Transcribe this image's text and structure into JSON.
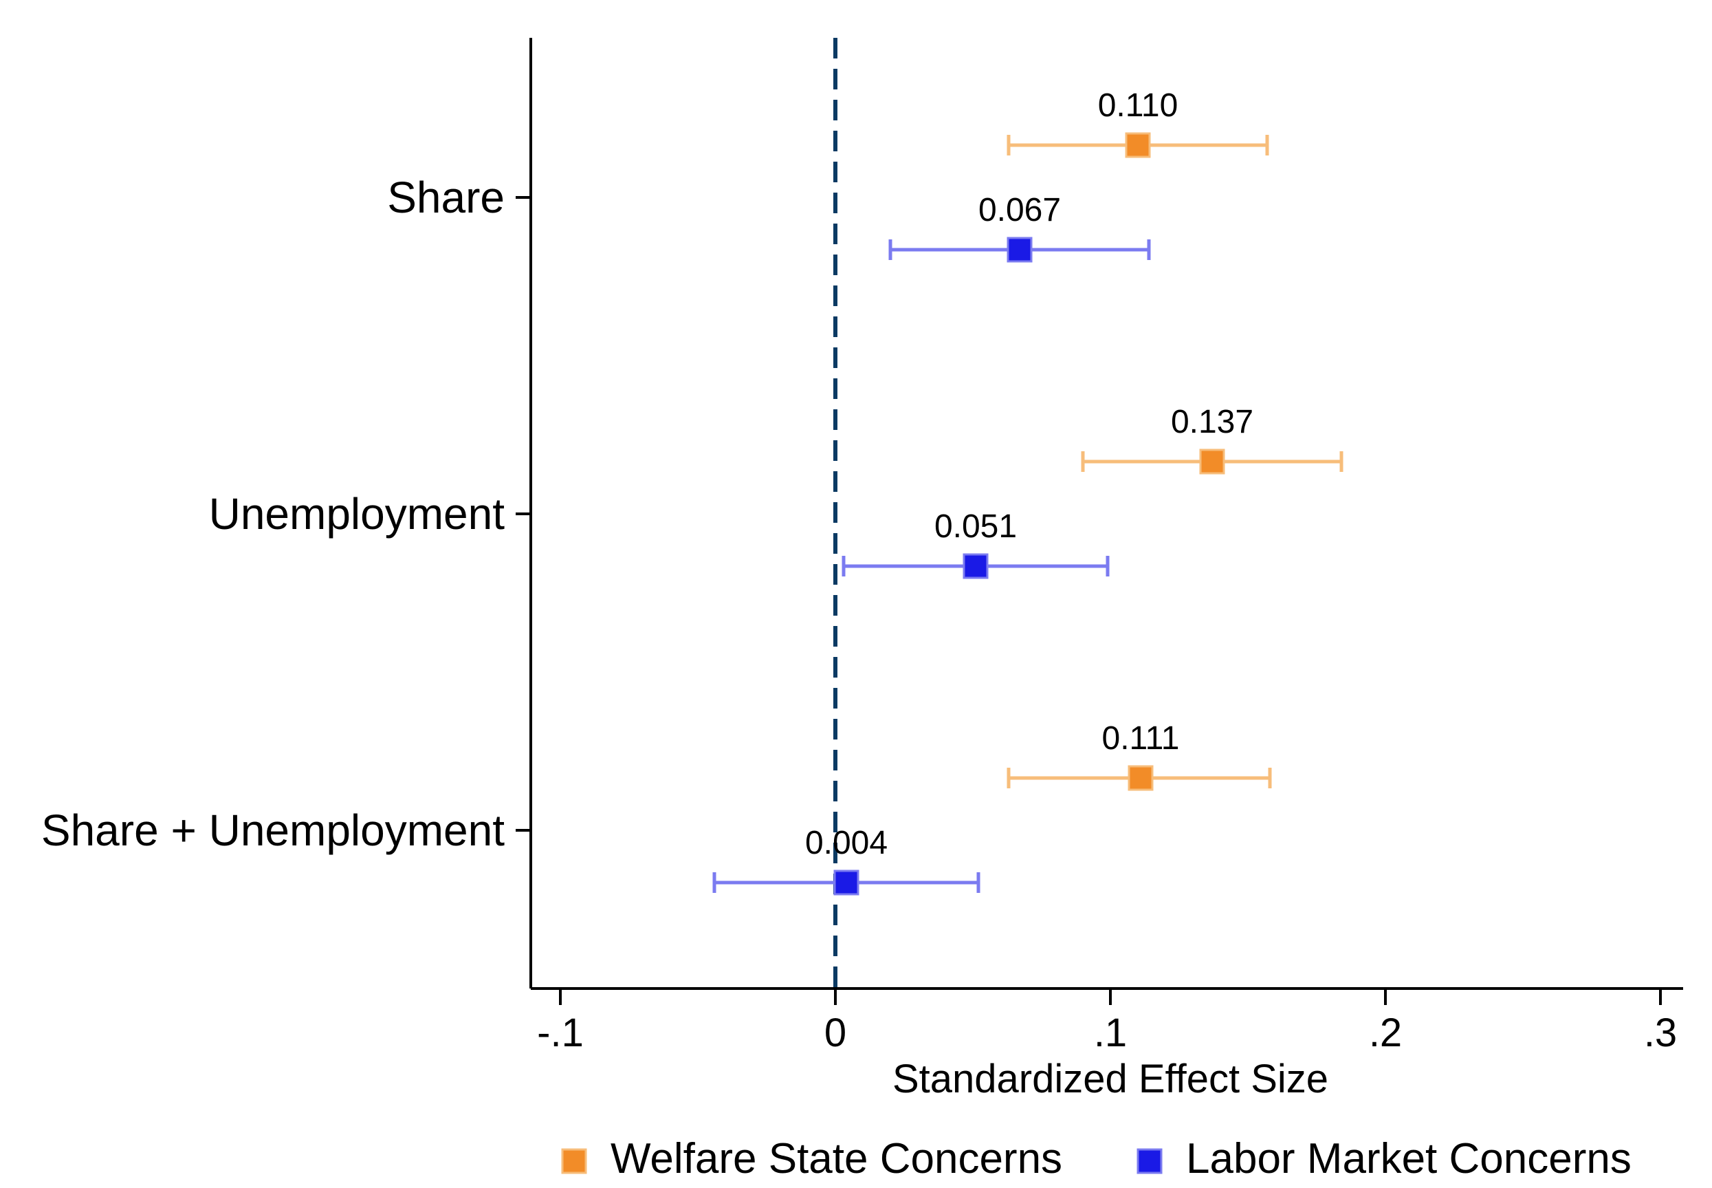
{
  "chart_data": {
    "type": "scatter",
    "subtype": "coefficient-plot",
    "orientation": "horizontal",
    "title": "",
    "xlabel": "Standardized Effect Size",
    "ylabel": "",
    "xlim": [
      -0.1,
      0.3
    ],
    "xticks": [
      -0.1,
      0,
      0.1,
      0.2,
      0.3
    ],
    "xtick_labels": [
      "-.1",
      "0",
      ".1",
      ".2",
      ".3"
    ],
    "reference_line": {
      "x": 0,
      "style": "dashed",
      "color": "#0b3a63"
    },
    "grid": false,
    "legend": {
      "position": "bottom",
      "orientation": "horizontal"
    },
    "categories": [
      "Share",
      "Unemployment",
      "Share + Unemployment"
    ],
    "series": [
      {
        "name": "Welfare State Concerns",
        "marker_color": "#f28c28",
        "ci_color": "#f7bd7a",
        "points": [
          {
            "category": "Share",
            "value": 0.11,
            "label": "0.110",
            "ci": [
              0.063,
              0.157
            ]
          },
          {
            "category": "Unemployment",
            "value": 0.137,
            "label": "0.137",
            "ci": [
              0.09,
              0.184
            ]
          },
          {
            "category": "Share + Unemployment",
            "value": 0.111,
            "label": "0.111",
            "ci": [
              0.063,
              0.158
            ]
          }
        ]
      },
      {
        "name": "Labor Market Concerns",
        "marker_color": "#1a1ae6",
        "ci_color": "#7b7bf0",
        "points": [
          {
            "category": "Share",
            "value": 0.067,
            "label": "0.067",
            "ci": [
              0.02,
              0.114
            ]
          },
          {
            "category": "Unemployment",
            "value": 0.051,
            "label": "0.051",
            "ci": [
              0.003,
              0.099
            ]
          },
          {
            "category": "Share + Unemployment",
            "value": 0.004,
            "label": "0.004",
            "ci": [
              -0.044,
              0.052
            ]
          }
        ]
      }
    ]
  }
}
